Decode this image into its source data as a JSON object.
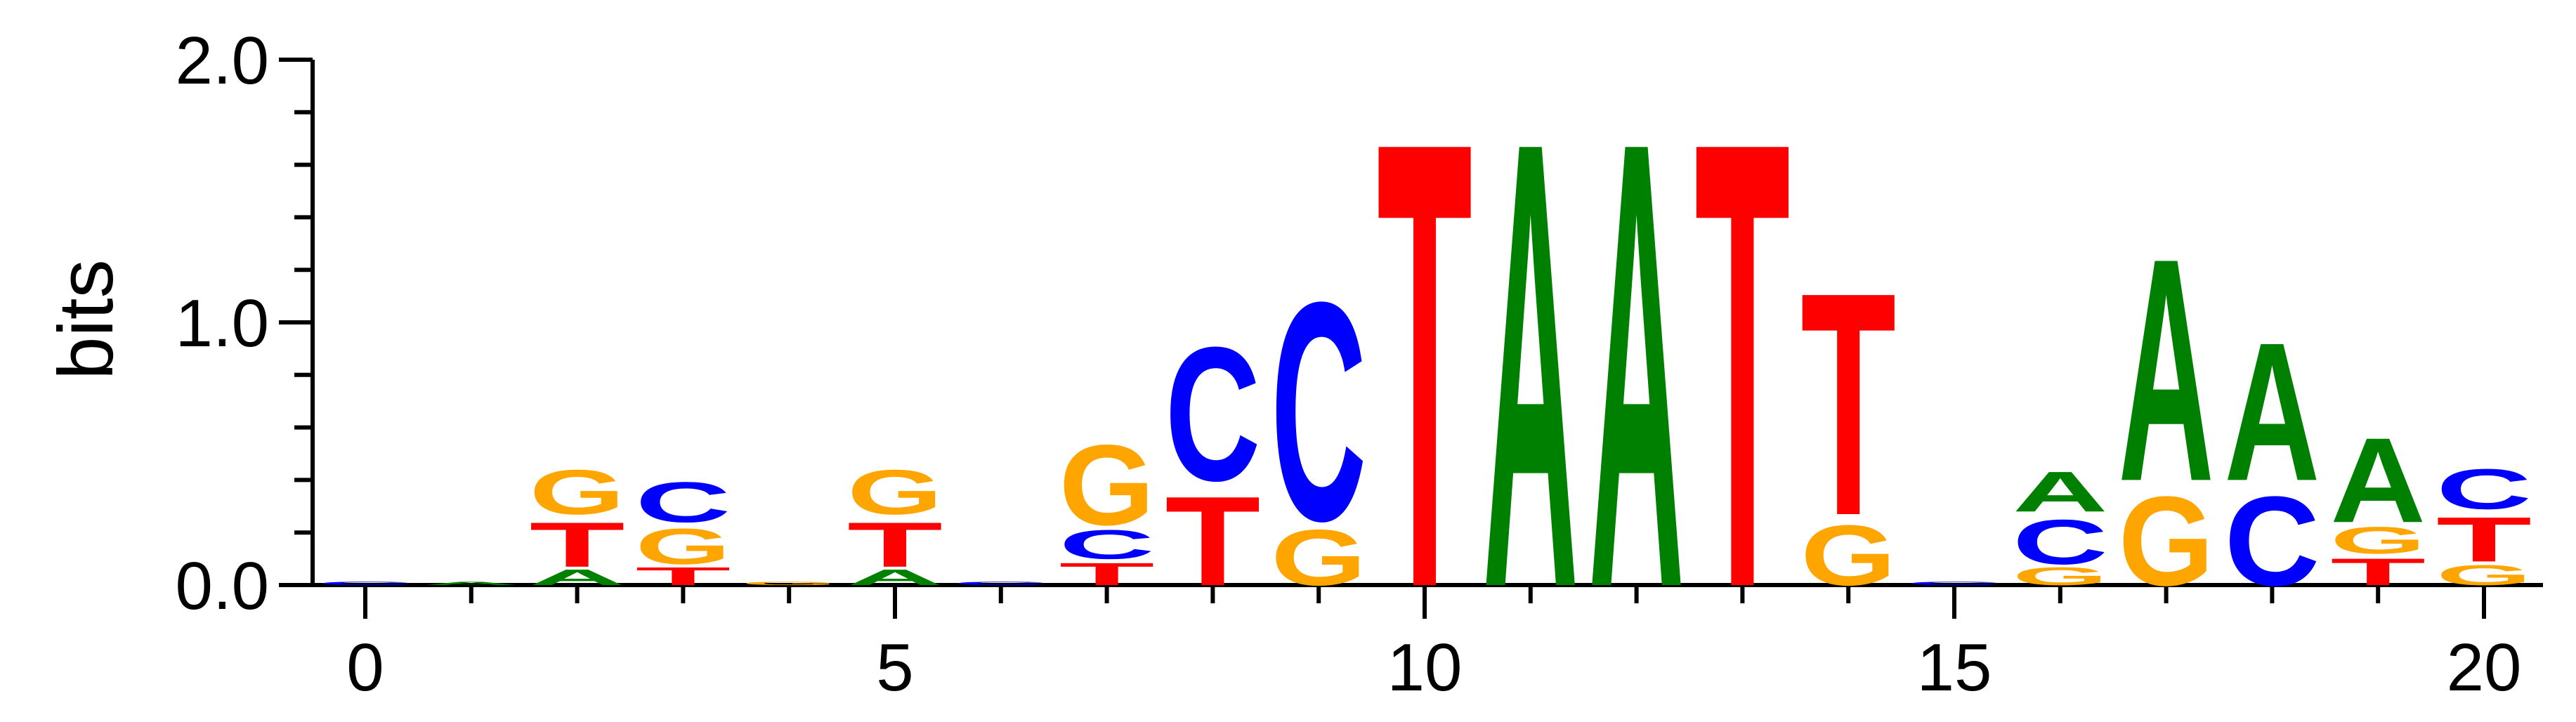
{
  "chart_data": {
    "type": "sequence-logo",
    "title": "",
    "xlabel": "",
    "ylabel": "bits",
    "ylim": [
      0,
      2
    ],
    "xlim": [
      -0.5,
      20.5
    ],
    "x_ticks": [
      0,
      5,
      10,
      15,
      20
    ],
    "x_tick_labels": [
      "0",
      "5",
      "10",
      "15",
      "20"
    ],
    "y_ticks": [
      0,
      1,
      2
    ],
    "y_tick_labels": [
      "0.0",
      "1.0",
      "2.0"
    ],
    "y_minor_step": 0.2,
    "colors": {
      "A": "#008000",
      "C": "#0000ff",
      "G": "#ffa500",
      "T": "#ff0000"
    },
    "positions": [
      {
        "pos": 0,
        "letters": [
          [
            "C",
            0.015
          ]
        ]
      },
      {
        "pos": 1,
        "letters": [
          [
            "A",
            0.015
          ]
        ]
      },
      {
        "pos": 2,
        "letters": [
          [
            "A",
            0.07
          ],
          [
            "T",
            0.2
          ],
          [
            "G",
            0.2
          ]
        ]
      },
      {
        "pos": 3,
        "letters": [
          [
            "T",
            0.08
          ],
          [
            "G",
            0.16
          ],
          [
            "C",
            0.18
          ]
        ]
      },
      {
        "pos": 4,
        "letters": [
          [
            "G",
            0.015
          ]
        ]
      },
      {
        "pos": 5,
        "letters": [
          [
            "A",
            0.07
          ],
          [
            "T",
            0.2
          ],
          [
            "G",
            0.2
          ]
        ]
      },
      {
        "pos": 6,
        "letters": [
          [
            "C",
            0.015
          ]
        ]
      },
      {
        "pos": 7,
        "letters": [
          [
            "T",
            0.1
          ],
          [
            "C",
            0.13
          ],
          [
            "G",
            0.36
          ]
        ]
      },
      {
        "pos": 8,
        "letters": [
          [
            "T",
            0.4
          ],
          [
            "C",
            0.6
          ]
        ]
      },
      {
        "pos": 9,
        "letters": [
          [
            "G",
            0.25
          ],
          [
            "C",
            0.98
          ]
        ]
      },
      {
        "pos": 10,
        "letters": [
          [
            "T",
            2.0
          ]
        ]
      },
      {
        "pos": 11,
        "letters": [
          [
            "A",
            2.0
          ]
        ]
      },
      {
        "pos": 12,
        "letters": [
          [
            "A",
            2.0
          ]
        ]
      },
      {
        "pos": 13,
        "letters": [
          [
            "T",
            2.0
          ]
        ]
      },
      {
        "pos": 14,
        "letters": [
          [
            "G",
            0.27
          ],
          [
            "T",
            1.0
          ]
        ]
      },
      {
        "pos": 15,
        "letters": [
          [
            "C",
            0.015
          ]
        ]
      },
      {
        "pos": 16,
        "letters": [
          [
            "G",
            0.08
          ],
          [
            "C",
            0.2
          ],
          [
            "A",
            0.18
          ]
        ]
      },
      {
        "pos": 17,
        "letters": [
          [
            "G",
            0.4
          ],
          [
            "A",
            1.0
          ]
        ]
      },
      {
        "pos": 18,
        "letters": [
          [
            "C",
            0.4
          ],
          [
            "A",
            0.62
          ]
        ]
      },
      {
        "pos": 19,
        "letters": [
          [
            "T",
            0.12
          ],
          [
            "G",
            0.12
          ],
          [
            "A",
            0.38
          ]
        ]
      },
      {
        "pos": 20,
        "letters": [
          [
            "G",
            0.09
          ],
          [
            "T",
            0.2
          ],
          [
            "C",
            0.18
          ]
        ]
      }
    ]
  }
}
